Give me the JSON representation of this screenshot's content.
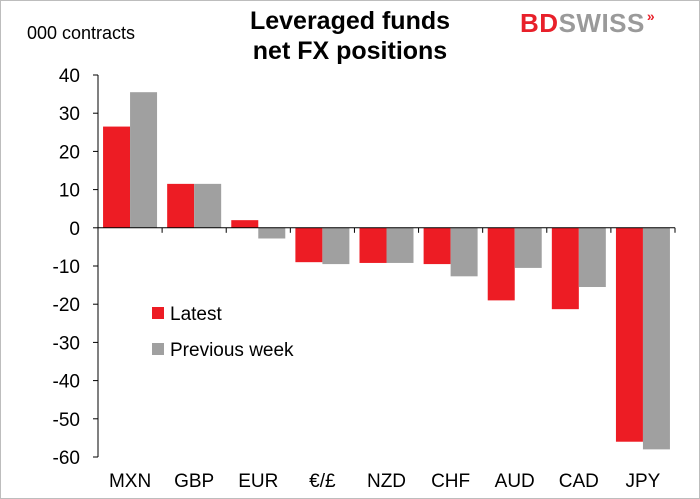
{
  "title_line1": "Leveraged funds",
  "title_line2": "net FX positions",
  "y_unit": "000 contracts",
  "logo": {
    "part1": "BD",
    "part2": "SWISS",
    "mark": "»"
  },
  "chart_data": {
    "type": "bar",
    "title": "Leveraged funds net FX positions",
    "ylabel": "000 contracts",
    "xlabel": "",
    "ylim": [
      -60,
      40
    ],
    "yticks": [
      40,
      30,
      20,
      10,
      0,
      -10,
      -20,
      -30,
      -40,
      -50,
      -60
    ],
    "categories": [
      "MXN",
      "GBP",
      "EUR",
      "€/£",
      "NZD",
      "CHF",
      "AUD",
      "CAD",
      "JPY"
    ],
    "series": [
      {
        "name": "Latest",
        "color": "#ed1c24",
        "values": [
          26.5,
          11.5,
          2.0,
          -9.0,
          -9.2,
          -9.5,
          -19.0,
          -21.3,
          -56.0
        ]
      },
      {
        "name": "Previous week",
        "color": "#a0a0a0",
        "values": [
          35.5,
          11.5,
          -2.8,
          -9.5,
          -9.2,
          -12.7,
          -10.5,
          -15.5,
          -58.0
        ]
      }
    ],
    "legend_position": "lower-left",
    "grid": false
  }
}
